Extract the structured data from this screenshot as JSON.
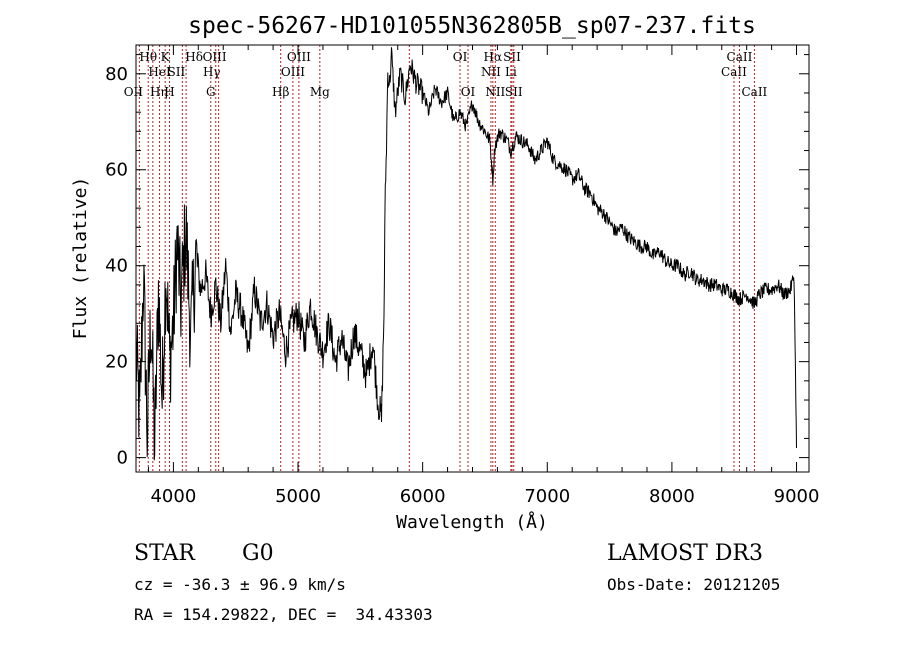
{
  "chart_data": {
    "type": "line",
    "title": "spec-56267-HD101055N362805B_sp07-237.fits",
    "xlabel": "Wavelength (Å)",
    "ylabel": "Flux (relative)",
    "xlim": [
      3700,
      9100
    ],
    "ylim": [
      -3,
      86
    ],
    "xticks": [
      4000,
      5000,
      6000,
      7000,
      8000,
      9000
    ],
    "yticks": [
      0,
      20,
      40,
      60,
      80
    ],
    "grid": false,
    "series": [
      {
        "line_color": "#000000",
        "x": [
          3700,
          3730,
          3760,
          3790,
          3820,
          3850,
          3880,
          3910,
          3940,
          3970,
          4000,
          4030,
          4060,
          4100,
          4140,
          4180,
          4220,
          4260,
          4300,
          4340,
          4380,
          4420,
          4460,
          4500,
          4550,
          4600,
          4650,
          4700,
          4750,
          4800,
          4850,
          4900,
          4950,
          5000,
          5050,
          5100,
          5150,
          5200,
          5250,
          5300,
          5350,
          5400,
          5450,
          5500,
          5550,
          5600,
          5640,
          5670,
          5690,
          5700,
          5710,
          5720,
          5735,
          5750,
          5780,
          5820,
          5860,
          5900,
          5950,
          6000,
          6050,
          6100,
          6150,
          6200,
          6250,
          6300,
          6350,
          6400,
          6450,
          6500,
          6540,
          6563,
          6580,
          6620,
          6680,
          6708,
          6750,
          6800,
          6850,
          6900,
          6950,
          7000,
          7050,
          7100,
          7150,
          7200,
          7250,
          7300,
          7350,
          7400,
          7450,
          7500,
          7550,
          7600,
          7650,
          7700,
          7750,
          7800,
          7850,
          7900,
          7950,
          8000,
          8050,
          8100,
          8150,
          8200,
          8250,
          8300,
          8350,
          8400,
          8450,
          8500,
          8542,
          8600,
          8662,
          8700,
          8750,
          8800,
          8850,
          8900,
          8950,
          8980,
          8995,
          9000
        ],
        "y": [
          22,
          8,
          38,
          5,
          30,
          2,
          35,
          12,
          40,
          20,
          28,
          45,
          32,
          48,
          25,
          42,
          35,
          38,
          30,
          36,
          28,
          40,
          26,
          34,
          30,
          22,
          35,
          28,
          32,
          25,
          30,
          22,
          28,
          30,
          24,
          32,
          26,
          22,
          28,
          20,
          25,
          18,
          26,
          22,
          17,
          24,
          12,
          8,
          30,
          55,
          65,
          80,
          78,
          84,
          72,
          80,
          75,
          82,
          78,
          76,
          72,
          77,
          74,
          76,
          70,
          72,
          69,
          74,
          70,
          68,
          66,
          58,
          65,
          68,
          66,
          64,
          67,
          66,
          65,
          62,
          64,
          66,
          62,
          61,
          60,
          58,
          59,
          56,
          55,
          52,
          51,
          49,
          47,
          48,
          46,
          45,
          44,
          44,
          42,
          43,
          41,
          40,
          40,
          38,
          39,
          37,
          37,
          36,
          36,
          35,
          35,
          34,
          33,
          34,
          32,
          34,
          35,
          35,
          36,
          34,
          35,
          38,
          12,
          2
        ]
      }
    ],
    "line_markers": [
      {
        "x": 3727,
        "label": "OII",
        "row": 3,
        "dx": -6
      },
      {
        "x": 3798,
        "label": "Hθ",
        "row": 1,
        "dx": 0
      },
      {
        "x": 3835,
        "label": "Hη",
        "row": 3,
        "dx": 6
      },
      {
        "x": 3889,
        "label": "HeI",
        "row": 2,
        "dx": 0
      },
      {
        "x": 3934,
        "label": "K",
        "row": 1,
        "dx": 0
      },
      {
        "x": 3969,
        "label": "H",
        "row": 3,
        "dx": 0
      },
      {
        "x": 4072,
        "label": "SII",
        "row": 2,
        "dx": -6
      },
      {
        "x": 4102,
        "label": "Hδ",
        "row": 1,
        "dx": 8
      },
      {
        "x": 4300,
        "label": "G",
        "row": 3,
        "dx": 0
      },
      {
        "x": 4340,
        "label": "Hγ",
        "row": 2,
        "dx": -4
      },
      {
        "x": 4363,
        "label": "OIII",
        "row": 1,
        "dx": -4
      },
      {
        "x": 4861,
        "label": "Hβ",
        "row": 3,
        "dx": 0
      },
      {
        "x": 4959,
        "label": "OIII",
        "row": 2,
        "dx": 0
      },
      {
        "x": 5007,
        "label": "OIII",
        "row": 1,
        "dx": 0
      },
      {
        "x": 5175,
        "label": "Mg",
        "row": 3,
        "dx": 0
      },
      {
        "x": 5893,
        "label": "",
        "row": 0,
        "dx": 0
      },
      {
        "x": 6300,
        "label": "OI",
        "row": 1,
        "dx": 0
      },
      {
        "x": 6364,
        "label": "OI",
        "row": 3,
        "dx": 0
      },
      {
        "x": 6548,
        "label": "NII",
        "row": 2,
        "dx": 0
      },
      {
        "x": 6563,
        "label": "Hα",
        "row": 1,
        "dx": 0
      },
      {
        "x": 6583,
        "label": "NII",
        "row": 3,
        "dx": 0
      },
      {
        "x": 6708,
        "label": "Li",
        "row": 2,
        "dx": 0
      },
      {
        "x": 6717,
        "label": "SII",
        "row": 1,
        "dx": 0
      },
      {
        "x": 6731,
        "label": "SII",
        "row": 3,
        "dx": 0
      },
      {
        "x": 8498,
        "label": "CaII",
        "row": 2,
        "dx": 0
      },
      {
        "x": 8542,
        "label": "CaII",
        "row": 1,
        "dx": 0
      },
      {
        "x": 8662,
        "label": "CaII",
        "row": 3,
        "dx": 0
      }
    ]
  },
  "info": {
    "class_label": "STAR",
    "subclass": "G0",
    "survey": "LAMOST DR3",
    "redshift": "cz = -36.3 ± 96.9 km/s",
    "obs_date": "Obs-Date: 20121205",
    "coords": "RA = 154.29822, DEC =  34.43303"
  }
}
